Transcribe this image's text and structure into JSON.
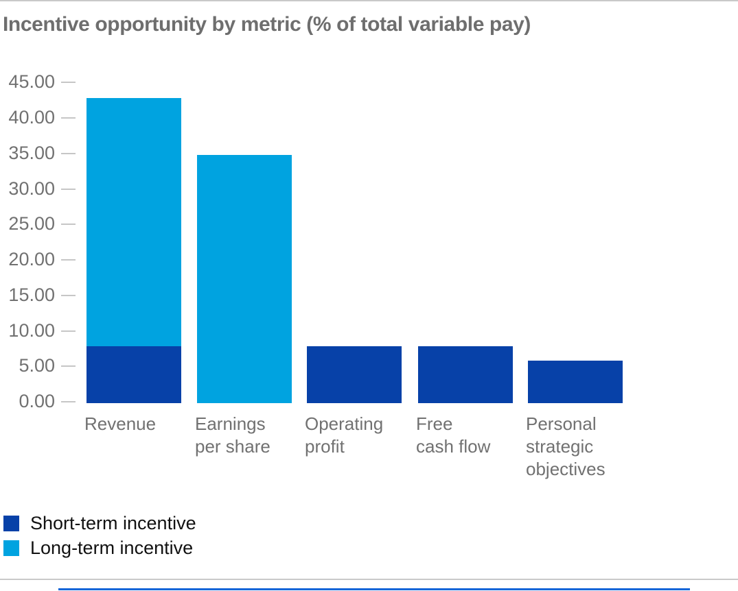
{
  "page": {
    "top_divider_color": "#c9c9c9",
    "divider_color": "#c9c9c9",
    "bottom_accent_color": "#1565d8"
  },
  "chart_data": {
    "type": "bar",
    "stacked": true,
    "title": "Incentive opportunity by metric (% of total variable pay)",
    "title_color": "#6e6e6e",
    "categories": [
      "Revenue",
      "Earnings per share",
      "Operating profit",
      "Free cash flow",
      "Personal strategic objectives"
    ],
    "category_label_lines": [
      [
        "Revenue"
      ],
      [
        "Earnings",
        "per share"
      ],
      [
        "Operating",
        "profit"
      ],
      [
        "Free",
        "cash flow"
      ],
      [
        "Personal",
        "strategic",
        "objectives"
      ]
    ],
    "series": [
      {
        "name": "Short-term incentive",
        "color": "#0741a8",
        "values": [
          8,
          0,
          8,
          8,
          6
        ]
      },
      {
        "name": "Long-term incentive",
        "color": "#00a3e0",
        "values": [
          35,
          35,
          0,
          0,
          0
        ]
      }
    ],
    "totals": [
      43,
      35,
      8,
      8,
      6
    ],
    "ylim": [
      0,
      45
    ],
    "ytick_step": 5,
    "ytick_labels": [
      "45.00",
      "40.00",
      "35.00",
      "30.00",
      "25.00",
      "20.00",
      "15.00",
      "10.00",
      "5.00",
      "0.00"
    ],
    "axis_text_color": "#717171",
    "tick_mark_color": "#c6c6c6",
    "grid": false,
    "legend_position": "bottom-left",
    "legend_text_color": "#111111"
  }
}
